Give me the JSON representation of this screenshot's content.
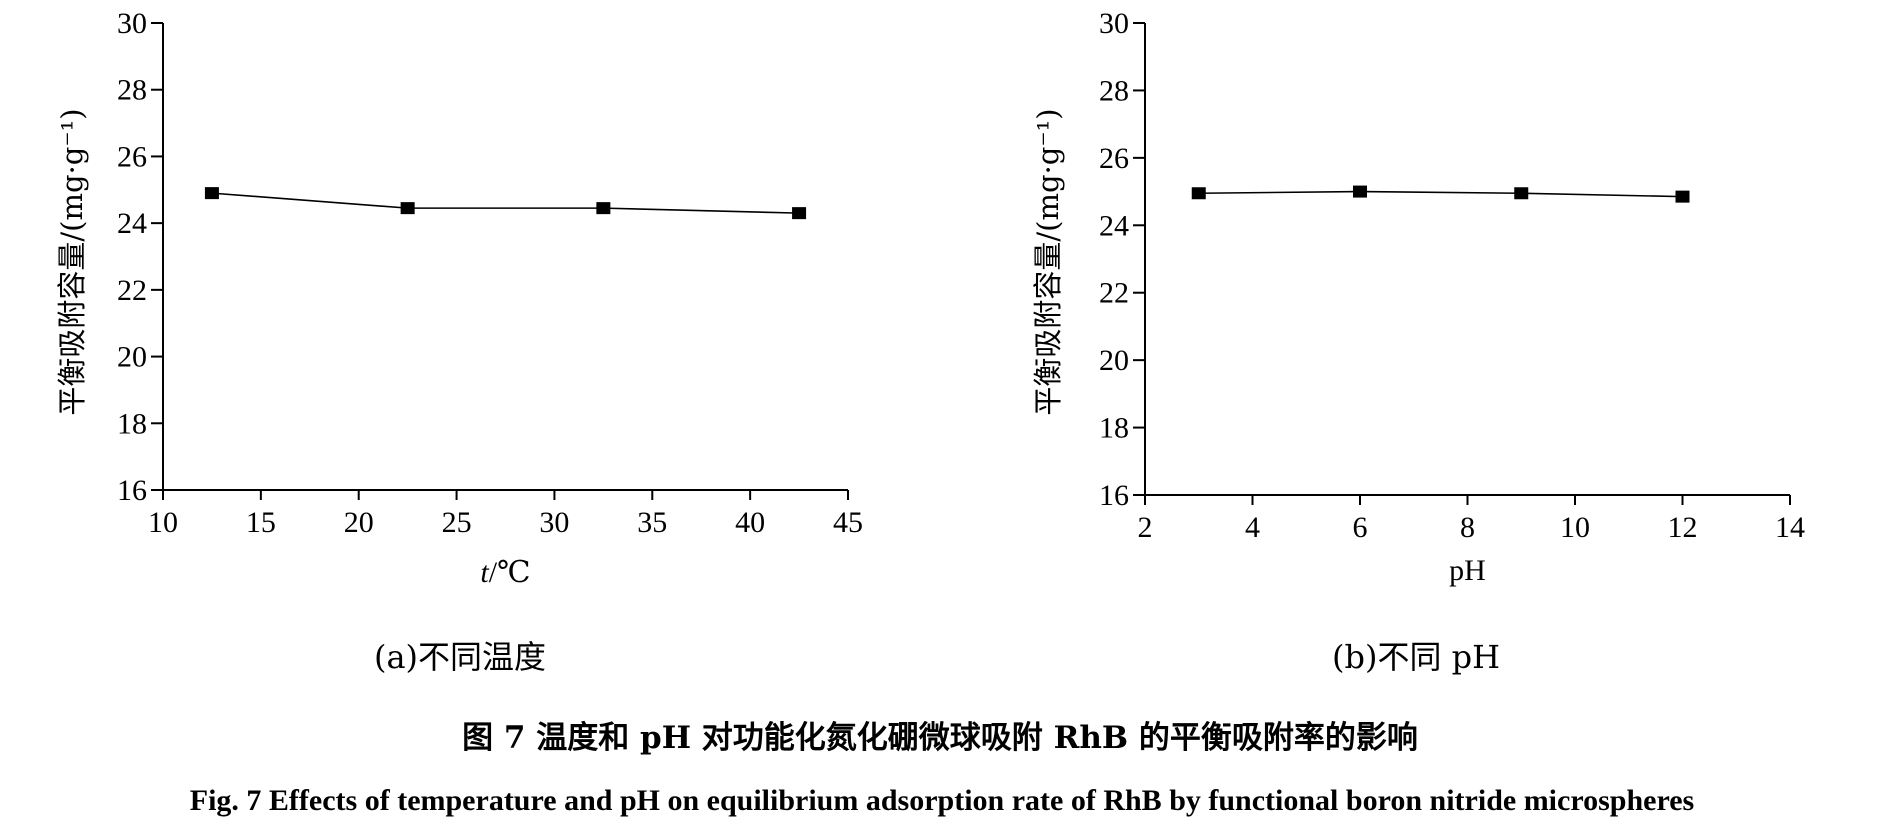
{
  "chart_data": [
    {
      "type": "line",
      "panel": "a",
      "xlabel_italic": "t",
      "xlabel_rest": "/℃",
      "ylabel": "平衡吸附容量/(mg·g⁻¹)",
      "xlim": [
        10,
        45
      ],
      "ylim": [
        16,
        30
      ],
      "xticks": [
        10,
        15,
        20,
        25,
        30,
        35,
        40,
        45
      ],
      "yticks": [
        16,
        18,
        20,
        22,
        24,
        26,
        28,
        30
      ],
      "x": [
        12.5,
        22.5,
        32.5,
        42.5
      ],
      "y": [
        24.9,
        24.45,
        24.45,
        24.3
      ],
      "subcaption": "(a)不同温度"
    },
    {
      "type": "line",
      "panel": "b",
      "xlabel": "pH",
      "ylabel": "平衡吸附容量/(mg·g⁻¹)",
      "xlim": [
        2,
        14
      ],
      "ylim": [
        16,
        30
      ],
      "xticks": [
        2,
        4,
        6,
        8,
        10,
        12,
        14
      ],
      "yticks": [
        16,
        18,
        20,
        22,
        24,
        26,
        28,
        30
      ],
      "x": [
        3,
        6,
        9,
        12
      ],
      "y": [
        24.95,
        25.0,
        24.95,
        24.85
      ],
      "subcaption": "(b)不同 pH"
    }
  ],
  "caption": {
    "cn": "图 7   温度和 pH 对功能化氮化硼微球吸附 RhB 的平衡吸附率的影响",
    "en": "Fig. 7   Effects of temperature and pH on equilibrium adsorption rate of RhB by functional boron nitride microspheres"
  }
}
